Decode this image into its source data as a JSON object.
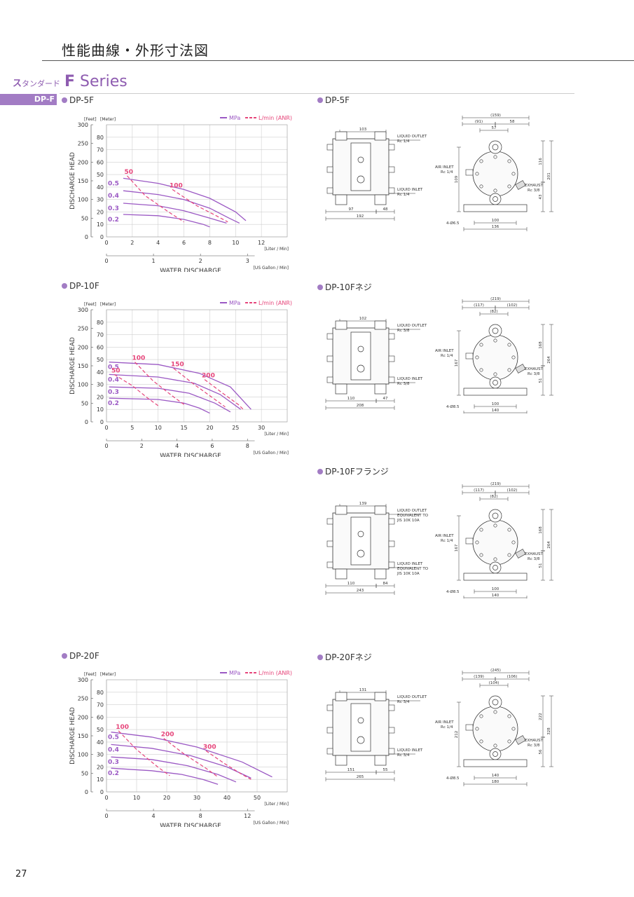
{
  "page_title": "性能曲線・外形寸法図",
  "series": {
    "jp_label": "ス",
    "jp_sub": "タンダード",
    "letter": "F",
    "name": "Series"
  },
  "model_badge": "DP-F",
  "page_number": "27",
  "legend": {
    "mpa": "MPa",
    "lmin": "L/min (ANR)"
  },
  "chart_common": {
    "feet_label": "[Feet]",
    "meter_label": "[Meter]",
    "ylabel": "DISCHARGE HEAD",
    "xlabel": "WATER DISCHARGE",
    "xunit_liter": "[Liter / Min]",
    "xunit_gallon": "[US Gallon / Min]",
    "feet_ticks": [
      "0",
      "50",
      "100",
      "150",
      "200",
      "250",
      "300"
    ],
    "meter_ticks": [
      "0",
      "10",
      "20",
      "30",
      "40",
      "50",
      "60",
      "70",
      "80"
    ]
  },
  "sections": {
    "dp5f": "DP-5F",
    "dp5f_dim": "DP-5F",
    "dp10f": "DP-10F",
    "dp10f_dim": "DP-10Fネジ",
    "dp10f_flange": "DP-10Fフランジ",
    "dp20f": "DP-20F",
    "dp20f_dim": "DP-20Fネジ"
  },
  "chart_data": [
    {
      "type": "line",
      "title": "DP-5F",
      "xlabel": "WATER DISCHARGE",
      "ylabel": "DISCHARGE HEAD",
      "xlim": [
        0,
        14
      ],
      "ylim": [
        0,
        90
      ],
      "x_ticks": [
        0,
        2,
        4,
        6,
        8,
        10,
        12
      ],
      "x2_ticks": [
        "0",
        "1",
        "2",
        "3"
      ],
      "series": [
        {
          "name": "0.5",
          "points": [
            [
              1.3,
              47
            ],
            [
              4,
              43
            ],
            [
              6,
              38
            ],
            [
              8,
              31
            ],
            [
              10,
              20
            ],
            [
              10.8,
              13
            ]
          ]
        },
        {
          "name": "0.4",
          "points": [
            [
              1.3,
              37
            ],
            [
              4,
              34
            ],
            [
              6,
              30
            ],
            [
              8,
              23
            ],
            [
              9.5,
              15
            ],
            [
              10.3,
              11
            ]
          ]
        },
        {
          "name": "0.3",
          "points": [
            [
              1.3,
              27
            ],
            [
              4,
              25
            ],
            [
              6,
              21
            ],
            [
              8,
              15
            ],
            [
              9.3,
              11
            ]
          ]
        },
        {
          "name": "0.2",
          "points": [
            [
              1.3,
              18
            ],
            [
              4,
              17
            ],
            [
              6,
              14
            ],
            [
              7.5,
              10
            ],
            [
              8,
              8
            ]
          ]
        }
      ],
      "air_lines": [
        {
          "name": "50",
          "points": [
            [
              1.6,
              49
            ],
            [
              3,
              33
            ],
            [
              4.8,
              20
            ],
            [
              6,
              12
            ]
          ]
        },
        {
          "name": "100",
          "points": [
            [
              5.1,
              38
            ],
            [
              7,
              25
            ],
            [
              8.5,
              17
            ],
            [
              9.4,
              12
            ]
          ]
        }
      ]
    },
    {
      "type": "line",
      "title": "DP-10F",
      "xlabel": "WATER DISCHARGE",
      "ylabel": "DISCHARGE HEAD",
      "xlim": [
        0,
        35
      ],
      "ylim": [
        0,
        90
      ],
      "x_ticks": [
        0,
        5,
        10,
        15,
        20,
        25,
        30
      ],
      "x2_ticks": [
        "0",
        "2",
        "4",
        "6",
        "8"
      ],
      "series": [
        {
          "name": "0.5",
          "points": [
            [
              0.5,
              48
            ],
            [
              10,
              46
            ],
            [
              18,
              39
            ],
            [
              24,
              28
            ],
            [
              28,
              10
            ]
          ]
        },
        {
          "name": "0.4",
          "points": [
            [
              0.5,
              38
            ],
            [
              10,
              36
            ],
            [
              17,
              31
            ],
            [
              22,
              22
            ],
            [
              26,
              10
            ]
          ]
        },
        {
          "name": "0.3",
          "points": [
            [
              0.5,
              28
            ],
            [
              10,
              27
            ],
            [
              16,
              23
            ],
            [
              21,
              15
            ],
            [
              24,
              8
            ]
          ]
        },
        {
          "name": "0.2",
          "points": [
            [
              0.5,
              19
            ],
            [
              10,
              18
            ],
            [
              15,
              15
            ],
            [
              18,
              11
            ],
            [
              20,
              7
            ]
          ]
        }
      ],
      "air_lines": [
        {
          "name": "50",
          "points": [
            [
              1.5,
              38
            ],
            [
              5,
              29
            ],
            [
              8,
              19
            ],
            [
              10,
              13
            ]
          ]
        },
        {
          "name": "100",
          "points": [
            [
              5.5,
              48
            ],
            [
              9,
              33
            ],
            [
              13,
              20
            ],
            [
              15,
              14
            ]
          ]
        },
        {
          "name": "150",
          "points": [
            [
              13,
              43
            ],
            [
              17,
              30
            ],
            [
              21,
              18
            ],
            [
              23,
              12
            ]
          ]
        },
        {
          "name": "200",
          "points": [
            [
              19,
              34
            ],
            [
              22.5,
              23
            ],
            [
              25.5,
              14
            ],
            [
              26.5,
              10
            ]
          ]
        }
      ]
    },
    {
      "type": "line",
      "title": "DP-20F",
      "xlabel": "WATER DISCHARGE",
      "ylabel": "DISCHARGE HEAD",
      "xlim": [
        0,
        60
      ],
      "ylim": [
        0,
        90
      ],
      "x_ticks": [
        0,
        10,
        20,
        30,
        40,
        50
      ],
      "x2_ticks": [
        "0",
        "4",
        "8",
        "12"
      ],
      "series": [
        {
          "name": "0.5",
          "points": [
            [
              1.5,
              48
            ],
            [
              15,
              44
            ],
            [
              30,
              36
            ],
            [
              45,
              24
            ],
            [
              55,
              12
            ]
          ]
        },
        {
          "name": "0.4",
          "points": [
            [
              1.5,
              38
            ],
            [
              15,
              35
            ],
            [
              28,
              29
            ],
            [
              40,
              20
            ],
            [
              48,
              11
            ]
          ]
        },
        {
          "name": "0.3",
          "points": [
            [
              1.5,
              28
            ],
            [
              15,
              26
            ],
            [
              27,
              21
            ],
            [
              37,
              14
            ],
            [
              43,
              8
            ]
          ]
        },
        {
          "name": "0.2",
          "points": [
            [
              1.5,
              19
            ],
            [
              15,
              17
            ],
            [
              25,
              14
            ],
            [
              32,
              10
            ],
            [
              37,
              6
            ]
          ]
        }
      ],
      "air_lines": [
        {
          "name": "100",
          "points": [
            [
              4,
              49
            ],
            [
              10,
              34
            ],
            [
              17,
              20
            ],
            [
              21,
              13
            ]
          ]
        },
        {
          "name": "200",
          "points": [
            [
              19,
              43
            ],
            [
              26,
              30
            ],
            [
              33,
              19
            ],
            [
              37,
              12
            ]
          ]
        },
        {
          "name": "300",
          "points": [
            [
              33,
              33
            ],
            [
              39,
              23
            ],
            [
              45,
              14
            ],
            [
              48,
              10
            ]
          ]
        }
      ]
    }
  ],
  "drawings": {
    "dp5f_front": {
      "width": "103",
      "bottom_a": "97",
      "bottom_b": "48",
      "total": "192",
      "outlet": "LIQUID OUTLET",
      "outlet_size": "Rc 1/4",
      "inlet": "LIQUID INLET",
      "inlet_size": "Rc 1/4"
    },
    "dp5f_side": {
      "top": "(159)",
      "a": "(91)",
      "b": "58",
      "c": "57",
      "air": "AIR INLET",
      "air_size": "Rc 1/4",
      "exhaust": "EXHAUST",
      "exhaust_size": "Rc 3/8",
      "h1": "116",
      "h2": "201",
      "h3": "109",
      "h4": "43",
      "holes": "4-Ø6.5",
      "base1": "100",
      "base2": "136"
    },
    "dp10f_front": {
      "width": "102",
      "bottom_a": "110",
      "bottom_b": "47",
      "total": "208",
      "outlet": "LIQUID OUTLET",
      "outlet_size": "Rc 3/8",
      "inlet": "LIQUID INLET",
      "inlet_size": "Rc 3/8"
    },
    "dp10f_side": {
      "top": "(219)",
      "a": "(117)",
      "b": "(102)",
      "c": "(82)",
      "air": "AIR INLET",
      "air_size": "Rc 1/4",
      "exhaust": "EXHAUST",
      "exhaust_size": "Rc 3/8",
      "h1": "168",
      "h2": "264",
      "h3": "167",
      "h4": "51",
      "holes": "4-Ø8.5",
      "base1": "100",
      "base2": "140"
    },
    "dp10f_flange_front": {
      "width": "139",
      "bottom_a": "110",
      "bottom_b": "84",
      "total": "243",
      "outlet": "LIQUID OUTLET",
      "outlet_eq": "EQUIVALENT TO",
      "outlet_size": "JIS 10K 10A",
      "inlet": "LIQUID INLET",
      "inlet_eq": "EQUIVALENT TO",
      "inlet_size": "JIS 10K 10A"
    },
    "dp10f_flange_side": {
      "top": "(219)",
      "a": "(117)",
      "b": "(102)",
      "c": "(82)",
      "air": "AIR INLET",
      "air_size": "Rc 1/4",
      "exhaust": "EXHAUST",
      "exhaust_size": "Rc 3/8",
      "h1": "168",
      "h2": "264",
      "h3": "167",
      "h4": "51",
      "holes": "4-Ø8.5",
      "base1": "100",
      "base2": "140"
    },
    "dp20f_front": {
      "width": "131",
      "bottom_a": "151",
      "bottom_b": "55",
      "total": "265",
      "outlet": "LIQUID OUTLET",
      "outlet_size": "Rc 3/4",
      "inlet": "LIQUID INLET",
      "inlet_size": "Rc 3/4"
    },
    "dp20f_side": {
      "top": "(245)",
      "a": "(139)",
      "b": "(106)",
      "c": "(104)",
      "air": "AIR INLET",
      "air_size": "Rc 1/4",
      "exhaust": "EXHAUST",
      "exhaust_size": "Rc 3/8",
      "h1": "222",
      "h2": "328",
      "h3": "212",
      "h4": "56",
      "holes": "4-Ø8.5",
      "base1": "140",
      "base2": "180"
    }
  }
}
